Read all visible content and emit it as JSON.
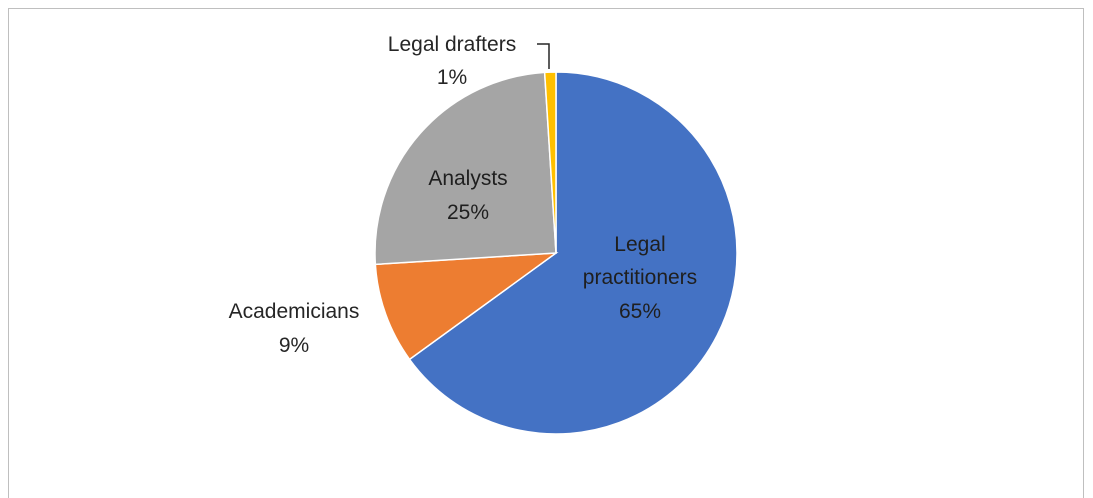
{
  "chart_data": {
    "type": "pie",
    "title": "",
    "start_angle_deg": 0,
    "direction": "clockwise",
    "slices": [
      {
        "label": "Legal practitioners",
        "value": 65,
        "display": "65%",
        "color": "#4472C4"
      },
      {
        "label": "Academicians",
        "value": 9,
        "display": "9%",
        "color": "#ED7D31"
      },
      {
        "label": "Analysts",
        "value": 25,
        "display": "25%",
        "color": "#A5A5A5"
      },
      {
        "label": "Legal drafters",
        "value": 1,
        "display": "1%",
        "color": "#FFC000"
      }
    ],
    "legend": "none",
    "data_labels": "category-and-percent"
  }
}
